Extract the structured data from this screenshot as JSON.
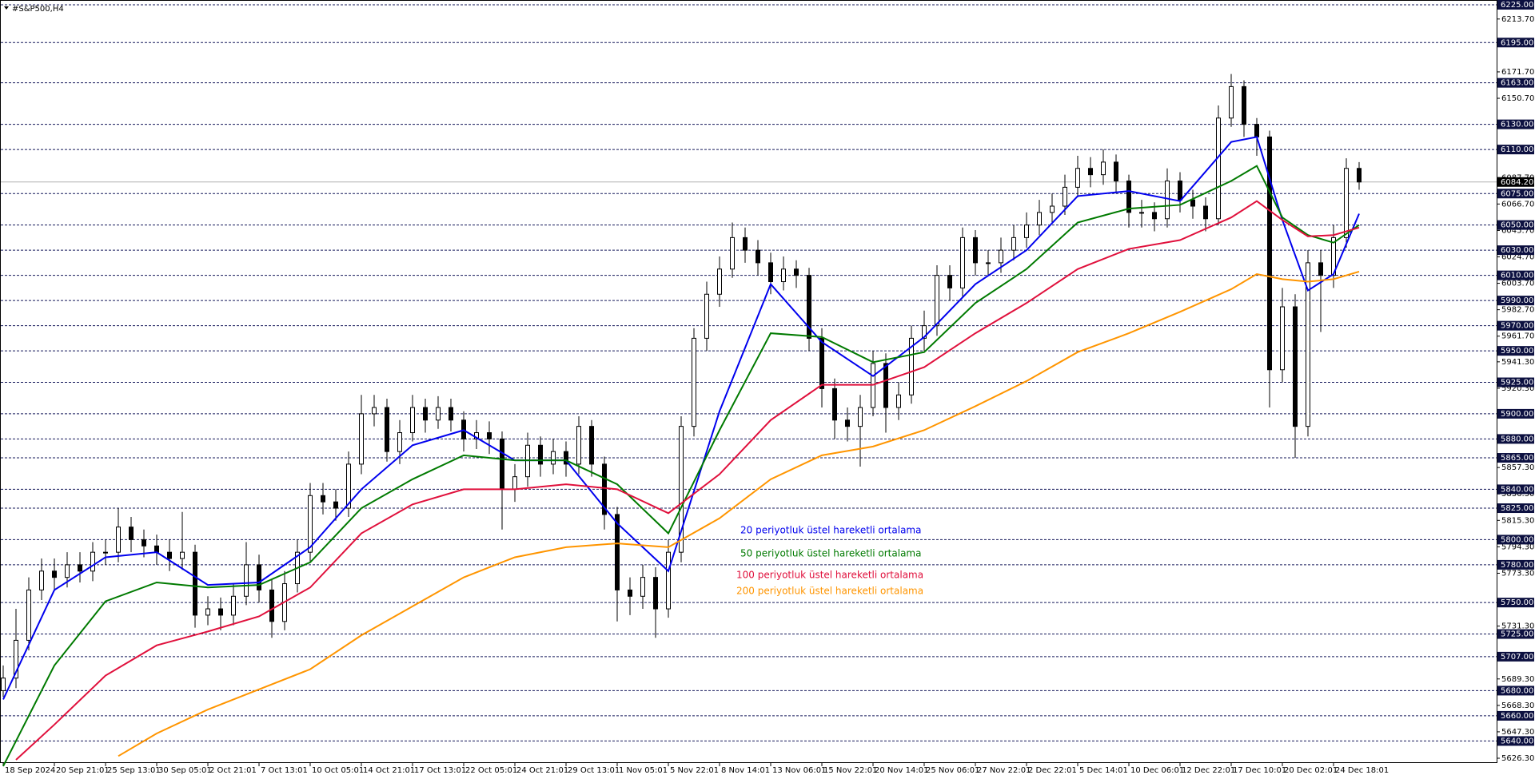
{
  "chart_data": {
    "type": "candlestick",
    "title": "#S&P500,H4",
    "ylim": [
      5626.3,
      6225
    ],
    "yticks": [
      {
        "value": 6213.7,
        "label": "6213.70"
      },
      {
        "value": 6171.7,
        "label": "6171.70"
      },
      {
        "value": 6150.7,
        "label": "6150.70"
      },
      {
        "value": 6087.7,
        "label": "6087.70"
      },
      {
        "value": 6066.7,
        "label": "6066.70"
      },
      {
        "value": 6045.7,
        "label": "6045.70"
      },
      {
        "value": 6024.7,
        "label": "6024.70"
      },
      {
        "value": 6003.7,
        "label": "6003.70"
      },
      {
        "value": 5982.7,
        "label": "5982.70"
      },
      {
        "value": 5961.7,
        "label": "5961.70"
      },
      {
        "value": 5941.3,
        "label": "5941.30"
      },
      {
        "value": 5920.3,
        "label": "5920.30"
      },
      {
        "value": 5857.3,
        "label": "5857.30"
      },
      {
        "value": 5836.3,
        "label": "5836.30"
      },
      {
        "value": 5815.3,
        "label": "5815.30"
      },
      {
        "value": 5794.3,
        "label": "5794.30"
      },
      {
        "value": 5773.3,
        "label": "5773.30"
      },
      {
        "value": 5731.3,
        "label": "5731.30"
      },
      {
        "value": 5689.3,
        "label": "5689.30"
      },
      {
        "value": 5668.3,
        "label": "5668.30"
      },
      {
        "value": 5647.3,
        "label": "5647.30"
      },
      {
        "value": 5626.3,
        "label": "5626.30"
      }
    ],
    "levels": [
      {
        "value": 6225,
        "label": "6225.00"
      },
      {
        "value": 6195,
        "label": "6195.00"
      },
      {
        "value": 6163,
        "label": "6163.00"
      },
      {
        "value": 6130,
        "label": "6130.00"
      },
      {
        "value": 6110,
        "label": "6110.00"
      },
      {
        "value": 6075,
        "label": "6075.00"
      },
      {
        "value": 6050,
        "label": "6050.00"
      },
      {
        "value": 6030,
        "label": "6030.00"
      },
      {
        "value": 6010,
        "label": "6010.00"
      },
      {
        "value": 5990,
        "label": "5990.00"
      },
      {
        "value": 5970,
        "label": "5970.00"
      },
      {
        "value": 5950,
        "label": "5950.00"
      },
      {
        "value": 5925,
        "label": "5925.00"
      },
      {
        "value": 5900,
        "label": "5900.00"
      },
      {
        "value": 5880,
        "label": "5880.00"
      },
      {
        "value": 5865,
        "label": "5865.00"
      },
      {
        "value": 5840,
        "label": "5840.00"
      },
      {
        "value": 5825,
        "label": "5825.00"
      },
      {
        "value": 5800,
        "label": "5800.00"
      },
      {
        "value": 5780,
        "label": "5780.00"
      },
      {
        "value": 5750,
        "label": "5750.00"
      },
      {
        "value": 5725,
        "label": "5725.00"
      },
      {
        "value": 5707,
        "label": "5707.00"
      },
      {
        "value": 5680,
        "label": "5680.00"
      },
      {
        "value": 5660,
        "label": "5660.00"
      },
      {
        "value": 5640,
        "label": "5640.00"
      }
    ],
    "current_price": {
      "value": 6084.2,
      "label": "6084.20"
    },
    "xticks": [
      {
        "value": 0,
        "label": "18 Sep 2024"
      },
      {
        "value": 4,
        "label": "20 Sep 21:01"
      },
      {
        "value": 8,
        "label": "25 Sep 13:01"
      },
      {
        "value": 12,
        "label": "30 Sep 05:01"
      },
      {
        "value": 16,
        "label": "2 Oct 21:01"
      },
      {
        "value": 20,
        "label": "7 Oct 13:01"
      },
      {
        "value": 24,
        "label": "10 Oct 05:01"
      },
      {
        "value": 28,
        "label": "14 Oct 21:01"
      },
      {
        "value": 32,
        "label": "17 Oct 13:01"
      },
      {
        "value": 36,
        "label": "22 Oct 05:01"
      },
      {
        "value": 40,
        "label": "24 Oct 21:01"
      },
      {
        "value": 44,
        "label": "29 Oct 13:01"
      },
      {
        "value": 48,
        "label": "1 Nov 05:01"
      },
      {
        "value": 52,
        "label": "5 Nov 22:01"
      },
      {
        "value": 56,
        "label": "8 Nov 14:01"
      },
      {
        "value": 60,
        "label": "13 Nov 06:01"
      },
      {
        "value": 64,
        "label": "15 Nov 22:01"
      },
      {
        "value": 68,
        "label": "20 Nov 14:01"
      },
      {
        "value": 72,
        "label": "25 Nov 06:01"
      },
      {
        "value": 76,
        "label": "27 Nov 22:01"
      },
      {
        "value": 80,
        "label": "2 Dec 22:01"
      },
      {
        "value": 84,
        "label": "5 Dec 14:01"
      },
      {
        "value": 88,
        "label": "10 Dec 06:01"
      },
      {
        "value": 92,
        "label": "12 Dec 22:01"
      },
      {
        "value": 96,
        "label": "17 Dec 10:01"
      },
      {
        "value": 100,
        "label": "20 Dec 02:01"
      },
      {
        "value": 104,
        "label": "24 Dec 18:01"
      }
    ],
    "candle_color": "#000000",
    "open": [
      5680,
      5690,
      5720,
      5760,
      5775,
      5770,
      5780,
      5775,
      5790,
      5790,
      5810,
      5800,
      5795,
      5790,
      5785,
      5790,
      5740,
      5745,
      5740,
      5755,
      5780,
      5760,
      5735,
      5765,
      5790,
      5835,
      5830,
      5825,
      5860,
      5900,
      5905,
      5870,
      5885,
      5905,
      5895,
      5905,
      5895,
      5880,
      5885,
      5880,
      5840,
      5850,
      5875,
      5860,
      5870,
      5860,
      5890,
      5860,
      5820,
      5760,
      5755,
      5770,
      5745,
      5790,
      5890,
      5960,
      5995,
      6015,
      6040,
      6030,
      6020,
      6005,
      6015,
      6010,
      5960,
      5920,
      5895,
      5890,
      5905,
      5940,
      5905,
      5915,
      5960,
      5970,
      6010,
      6000,
      6040,
      6020,
      6020,
      6030,
      6040,
      6050,
      6060,
      6065,
      6080,
      6095,
      6090,
      6100,
      6085,
      6060,
      6060,
      6055,
      6085,
      6070,
      6065,
      6055,
      6135,
      6160,
      6130,
      6120,
      5935,
      5985,
      5890,
      6020,
      6010,
      6040,
      6095
    ],
    "high": [
      5700,
      5745,
      5770,
      5785,
      5785,
      5790,
      5790,
      5798,
      5800,
      5825,
      5818,
      5808,
      5804,
      5800,
      5822,
      5796,
      5755,
      5754,
      5765,
      5798,
      5788,
      5768,
      5775,
      5800,
      5845,
      5845,
      5840,
      5870,
      5915,
      5915,
      5912,
      5895,
      5915,
      5912,
      5914,
      5912,
      5902,
      5895,
      5894,
      5886,
      5860,
      5885,
      5882,
      5880,
      5878,
      5898,
      5895,
      5866,
      5826,
      5770,
      5780,
      5778,
      5800,
      5898,
      5968,
      6005,
      6025,
      6052,
      6048,
      6038,
      6028,
      6025,
      6022,
      6016,
      5968,
      5928,
      5905,
      5915,
      5950,
      5948,
      5925,
      5970,
      5982,
      6018,
      6018,
      6048,
      6046,
      6030,
      6040,
      6050,
      6060,
      6070,
      6075,
      6090,
      6105,
      6104,
      6110,
      6106,
      6090,
      6070,
      6068,
      6095,
      6092,
      6078,
      6072,
      6145,
      6170,
      6165,
      6135,
      6125,
      6000,
      5995,
      6030,
      6030,
      6050,
      6103,
      6100
    ],
    "low": [
      5675,
      5682,
      5712,
      5752,
      5760,
      5762,
      5766,
      5767,
      5780,
      5782,
      5790,
      5786,
      5780,
      5775,
      5776,
      5730,
      5732,
      5728,
      5732,
      5748,
      5750,
      5722,
      5728,
      5758,
      5782,
      5820,
      5815,
      5818,
      5852,
      5890,
      5862,
      5860,
      5878,
      5885,
      5888,
      5886,
      5870,
      5872,
      5868,
      5808,
      5830,
      5842,
      5850,
      5852,
      5850,
      5852,
      5850,
      5808,
      5735,
      5740,
      5745,
      5722,
      5738,
      5782,
      5882,
      5950,
      5985,
      6008,
      6020,
      6010,
      5995,
      5998,
      6000,
      5950,
      5905,
      5880,
      5878,
      5858,
      5898,
      5885,
      5895,
      5908,
      5950,
      5962,
      5990,
      5992,
      6010,
      6010,
      6012,
      6022,
      6032,
      6042,
      6052,
      6058,
      6072,
      6080,
      6082,
      6075,
      6048,
      6048,
      6045,
      6048,
      6060,
      6055,
      6045,
      6050,
      6128,
      6120,
      6105,
      5905,
      5925,
      5865,
      5882,
      5965,
      6000,
      6032,
      6078
    ],
    "close": [
      5690,
      5720,
      5760,
      5775,
      5770,
      5780,
      5775,
      5790,
      5790,
      5810,
      5800,
      5795,
      5790,
      5785,
      5790,
      5740,
      5745,
      5740,
      5755,
      5780,
      5760,
      5735,
      5765,
      5790,
      5835,
      5830,
      5825,
      5860,
      5900,
      5905,
      5870,
      5885,
      5905,
      5895,
      5905,
      5895,
      5880,
      5885,
      5880,
      5840,
      5850,
      5875,
      5860,
      5870,
      5860,
      5890,
      5860,
      5820,
      5760,
      5755,
      5770,
      5745,
      5790,
      5890,
      5960,
      5995,
      6015,
      6040,
      6030,
      6020,
      6005,
      6015,
      6010,
      5960,
      5920,
      5895,
      5890,
      5905,
      5940,
      5905,
      5915,
      5960,
      5970,
      6010,
      6000,
      6040,
      6020,
      6020,
      6030,
      6040,
      6050,
      6060,
      6065,
      6080,
      6095,
      6090,
      6100,
      6085,
      6060,
      6060,
      6055,
      6085,
      6070,
      6065,
      6055,
      6135,
      6160,
      6130,
      6120,
      5935,
      5985,
      5890,
      6020,
      6010,
      6040,
      6095,
      6084.2
    ],
    "series": [
      {
        "name": "20 periyotluk üstel hareketli ortalama",
        "color": "#0000ee",
        "x": [
          0,
          4,
          8,
          12,
          16,
          20,
          24,
          28,
          32,
          36,
          40,
          44,
          48,
          52,
          56,
          60,
          64,
          68,
          72,
          76,
          80,
          84,
          88,
          92,
          96,
          98,
          100,
          102,
          104,
          106
        ],
        "values": [
          5673,
          5760,
          5786,
          5790,
          5764,
          5766,
          5794,
          5840,
          5875,
          5887,
          5863,
          5863,
          5813,
          5775,
          5902,
          6003,
          5957,
          5930,
          5961,
          6003,
          6030,
          6073,
          6077,
          6069,
          6116,
          6120,
          6054,
          5998,
          6011,
          6059
        ]
      },
      {
        "name": "50 periyotluk üstel hareketli ortalama",
        "color": "#007a00",
        "x": [
          0,
          4,
          8,
          12,
          16,
          20,
          24,
          28,
          32,
          36,
          40,
          44,
          48,
          52,
          56,
          60,
          64,
          68,
          72,
          76,
          80,
          84,
          88,
          92,
          96,
          98,
          100,
          102,
          104,
          106
        ],
        "values": [
          5620,
          5700,
          5751,
          5766,
          5762,
          5764,
          5782,
          5825,
          5848,
          5867,
          5863,
          5863,
          5844,
          5805,
          5887,
          5964,
          5961,
          5941,
          5949,
          5988,
          6015,
          6052,
          6063,
          6066,
          6085,
          6097,
          6056,
          6042,
          6036,
          6050
        ]
      },
      {
        "name": "100 periyotluk üstel hareketli ortalama",
        "color": "#e0103c",
        "x": [
          1,
          4,
          8,
          12,
          16,
          20,
          24,
          28,
          32,
          36,
          40,
          44,
          48,
          52,
          56,
          60,
          64,
          68,
          72,
          76,
          80,
          84,
          88,
          92,
          96,
          98,
          100,
          102,
          104,
          106
        ],
        "values": [
          5625,
          5653,
          5692,
          5716,
          5727,
          5739,
          5762,
          5805,
          5828,
          5840,
          5840,
          5844,
          5840,
          5821,
          5852,
          5895,
          5923,
          5923,
          5937,
          5964,
          5988,
          6015,
          6031,
          6038,
          6056,
          6069,
          6054,
          6041,
          6042,
          6048
        ]
      },
      {
        "name": "200 periyotluk üstel hareketli ortalama",
        "color": "#ff9500",
        "x": [
          9,
          12,
          16,
          20,
          24,
          28,
          32,
          36,
          40,
          44,
          48,
          52,
          56,
          60,
          64,
          68,
          72,
          76,
          80,
          84,
          88,
          92,
          96,
          98,
          100,
          102,
          104,
          106
        ],
        "values": [
          5628,
          5646,
          5665,
          5681,
          5697,
          5724,
          5747,
          5770,
          5786,
          5794,
          5797,
          5794,
          5817,
          5848,
          5867,
          5874,
          5887,
          5906,
          5926,
          5949,
          5964,
          5981,
          5999,
          6011,
          6007,
          6005,
          6007,
          6013
        ]
      }
    ]
  }
}
